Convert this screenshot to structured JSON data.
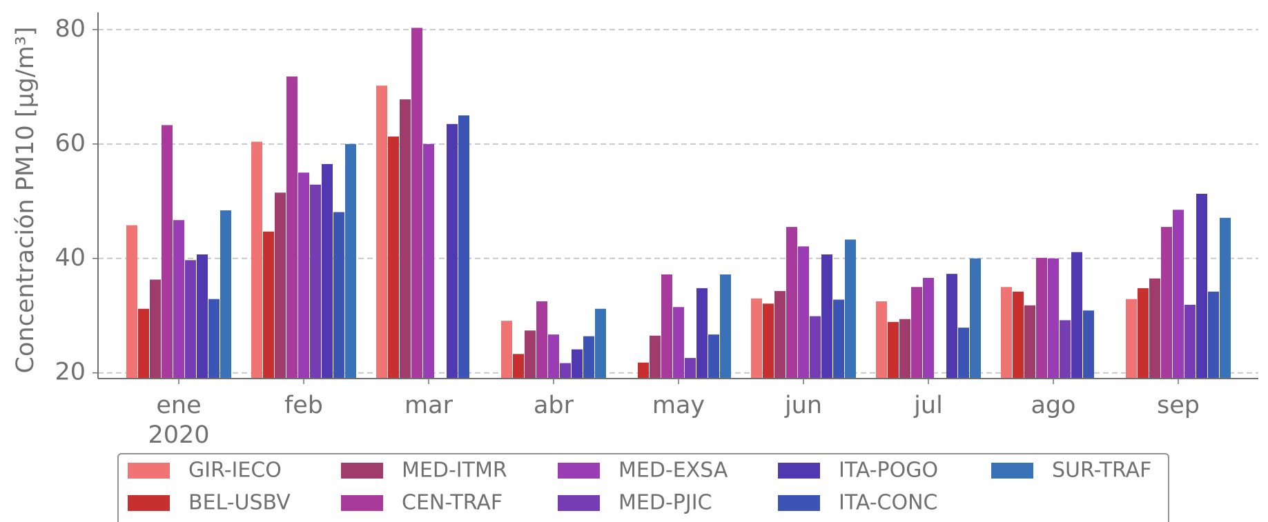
{
  "chart_data": {
    "type": "bar",
    "y_label": "Concentración PM10 [μg/m³]",
    "categories": [
      "ene",
      "feb",
      "mar",
      "abr",
      "may",
      "jun",
      "jul",
      "ago",
      "sep"
    ],
    "year_label": "2020",
    "ylim": [
      19,
      83
    ],
    "yticks": [
      20,
      40,
      60,
      80
    ],
    "grid": true,
    "legend": "bottom",
    "series": [
      {
        "name": "GIR-IECO",
        "color": "#f07474",
        "values": [
          45.8,
          60.4,
          70.2,
          29.1,
          null,
          33.0,
          32.5,
          35.0,
          32.9
        ]
      },
      {
        "name": "BEL-USBV",
        "color": "#c8302f",
        "values": [
          31.2,
          44.7,
          61.3,
          23.3,
          21.8,
          32.1,
          28.9,
          34.2,
          34.8
        ]
      },
      {
        "name": "MED-ITMR",
        "color": "#a03c6c",
        "values": [
          36.3,
          51.5,
          67.8,
          27.4,
          26.5,
          34.3,
          29.4,
          31.8,
          36.5
        ]
      },
      {
        "name": "CEN-TRAF",
        "color": "#a83a9c",
        "values": [
          63.3,
          71.8,
          80.3,
          32.5,
          37.2,
          45.5,
          35.0,
          40.1,
          45.5
        ]
      },
      {
        "name": "MED-EXSA",
        "color": "#9a3cb4",
        "values": [
          46.7,
          55.0,
          60.0,
          26.7,
          31.5,
          42.1,
          36.6,
          40.0,
          48.5
        ]
      },
      {
        "name": "MED-PJIC",
        "color": "#763cb4",
        "values": [
          39.7,
          52.9,
          null,
          21.7,
          22.6,
          29.9,
          null,
          29.2,
          31.9
        ]
      },
      {
        "name": "ITA-POGO",
        "color": "#5038b0",
        "values": [
          40.7,
          56.5,
          63.5,
          24.1,
          34.8,
          40.7,
          37.3,
          41.1,
          51.3
        ]
      },
      {
        "name": "ITA-CONC",
        "color": "#3c54b4",
        "values": [
          32.9,
          48.1,
          65.0,
          26.4,
          26.7,
          32.8,
          27.9,
          30.9,
          34.2
        ]
      },
      {
        "name": "SUR-TRAF",
        "color": "#3a72b8",
        "values": [
          48.4,
          60.0,
          null,
          31.2,
          37.2,
          43.3,
          40.0,
          null,
          47.1
        ]
      }
    ]
  }
}
